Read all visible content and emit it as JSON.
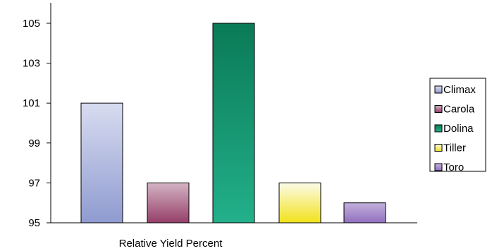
{
  "chart_data": {
    "type": "bar",
    "xlabel": "Relative Yield Percent",
    "ylabel": "",
    "ylim": [
      95,
      106
    ],
    "yticks": [
      "95",
      "97",
      "99",
      "101",
      "103",
      "105"
    ],
    "grid": false,
    "legend_position": "right",
    "series": [
      {
        "name": "Climax",
        "value": 101,
        "color_top": "#d8dcf0",
        "color_bottom": "#8f9bd0"
      },
      {
        "name": "Carola",
        "value": 97,
        "color_top": "#d4b4c4",
        "color_bottom": "#943e68"
      },
      {
        "name": "Dolina",
        "value": 105,
        "color_top": "#0a7a56",
        "color_bottom": "#22b08a"
      },
      {
        "name": "Tiller",
        "value": 97,
        "color_top": "#fbfbe8",
        "color_bottom": "#f2e21a"
      },
      {
        "name": "Toro",
        "value": 96,
        "color_top": "#c3b0dc",
        "color_bottom": "#9270c0"
      }
    ]
  }
}
